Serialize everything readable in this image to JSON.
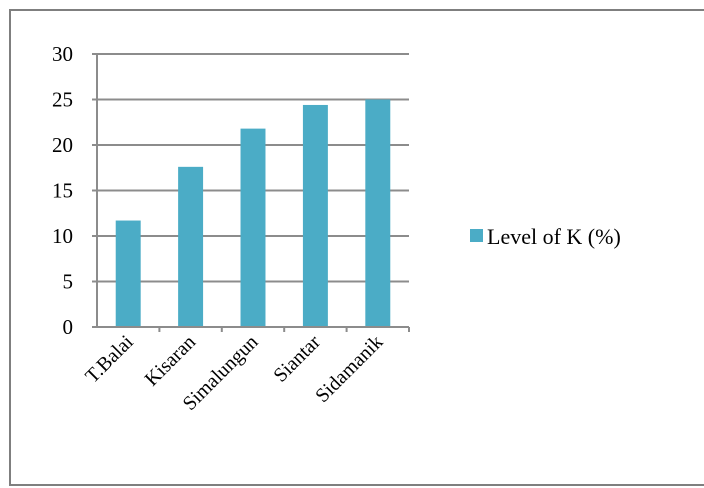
{
  "chart_data": {
    "type": "bar",
    "title": "",
    "xlabel": "",
    "ylabel": "",
    "categories": [
      "T.Balai",
      "Kisaran",
      "Simalungun",
      "Siantar",
      "Sidamanik"
    ],
    "series": [
      {
        "name": "Level of K (%)",
        "values": [
          11.7,
          17.6,
          21.8,
          24.4,
          25.0
        ],
        "color": "#4bacc6"
      }
    ],
    "ylim": [
      0,
      30
    ],
    "yticks": [
      "0",
      "5",
      "10",
      "15",
      "20",
      "25",
      "30"
    ],
    "grid": true,
    "legend": "right"
  }
}
